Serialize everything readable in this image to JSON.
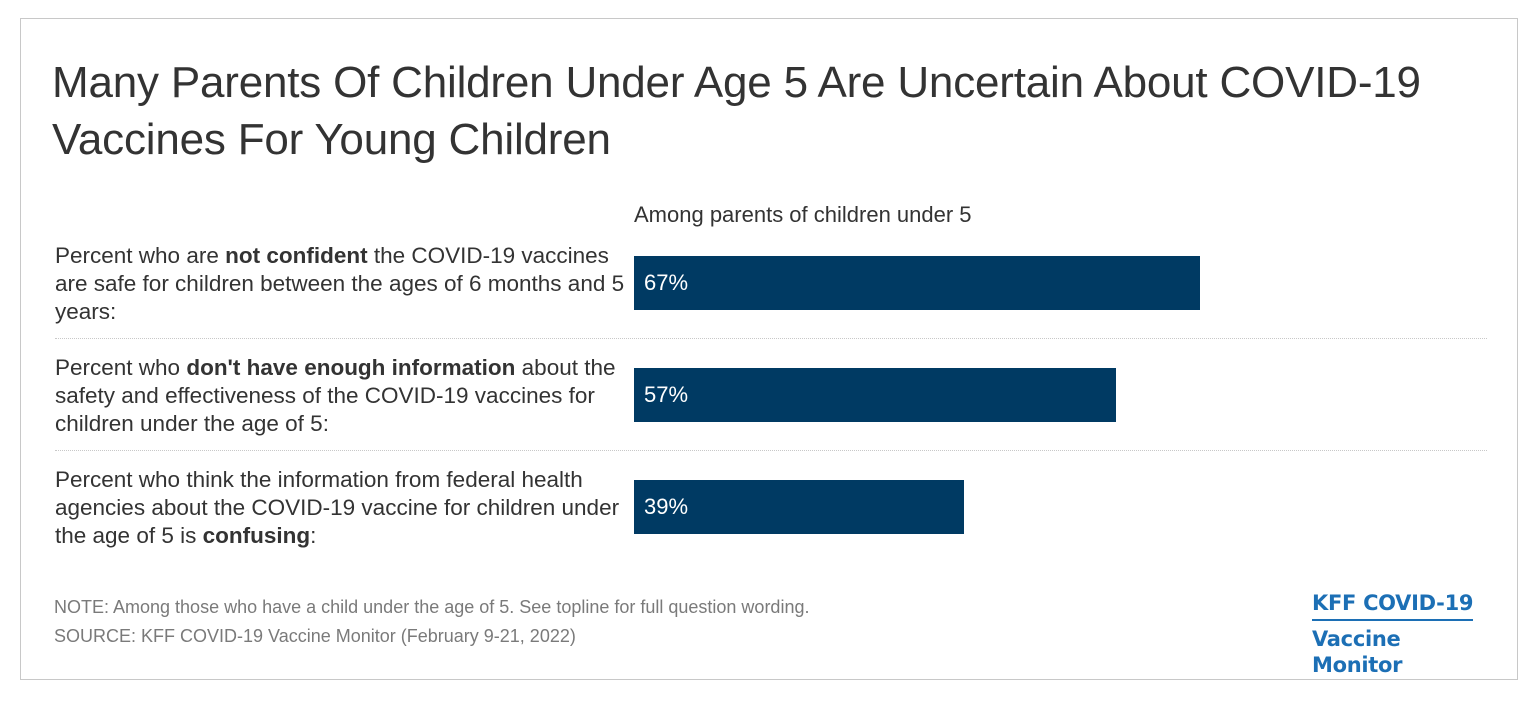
{
  "title": "Many Parents Of Children Under Age 5 Are Uncertain About COVID-19 Vaccines For Young Children",
  "chart_data": {
    "type": "bar",
    "orientation": "horizontal",
    "subtitle": "Among parents of children under 5",
    "categories": [
      {
        "parts": [
          {
            "text": "Percent who are ",
            "bold": false
          },
          {
            "text": "not confident",
            "bold": true
          },
          {
            "text": " the COVID-19 vaccines are safe for children between the ages of 6 months and 5 years:",
            "bold": false
          }
        ]
      },
      {
        "parts": [
          {
            "text": "Percent who ",
            "bold": false
          },
          {
            "text": "don't have enough information",
            "bold": true
          },
          {
            "text": " about the safety and effectiveness of the COVID-19 vaccines for children under the age of 5:",
            "bold": false
          }
        ]
      },
      {
        "parts": [
          {
            "text": "Percent who think the information from federal health agencies about the COVID-19 vaccine for children under the age of 5 is ",
            "bold": false
          },
          {
            "text": "confusing",
            "bold": true
          },
          {
            "text": ":",
            "bold": false
          }
        ]
      }
    ],
    "values": [
      67,
      57,
      39
    ],
    "value_labels": [
      "67%",
      "57%",
      "39%"
    ],
    "xlim": [
      0,
      100
    ],
    "bar_color": "#003a63",
    "grid": false,
    "legend": "none"
  },
  "footer": {
    "note": "NOTE: Among those who have a child under the age of 5. See topline for full question wording.",
    "source": "SOURCE: KFF COVID-19 Vaccine Monitor (February 9-21, 2022)"
  },
  "logo": {
    "line1": "KFF COVID-19",
    "line2": "Vaccine Monitor",
    "color": "#1c6fb5"
  }
}
